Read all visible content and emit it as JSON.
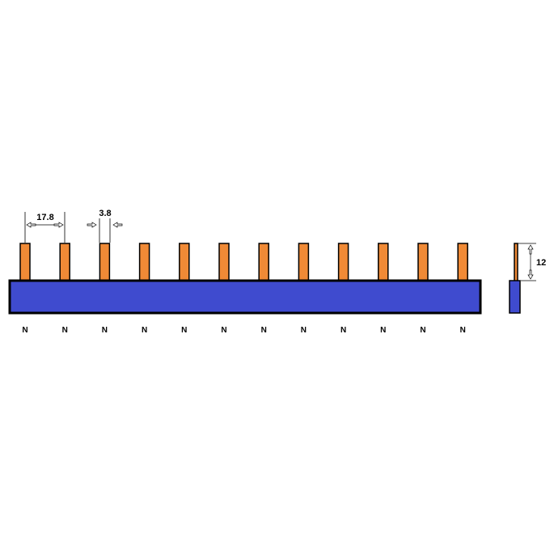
{
  "colors": {
    "busbar": "#3f4bcf",
    "pin": "#f08a36",
    "outline": "#000000",
    "arrow_fill": "#ffffff"
  },
  "pin_labels": [
    "N",
    "N",
    "N",
    "N",
    "N",
    "N",
    "N",
    "N",
    "N",
    "N",
    "N",
    "N"
  ],
  "dimensions": {
    "pitch": "17.8",
    "pin_width": "3.8",
    "pin_height": "12"
  }
}
